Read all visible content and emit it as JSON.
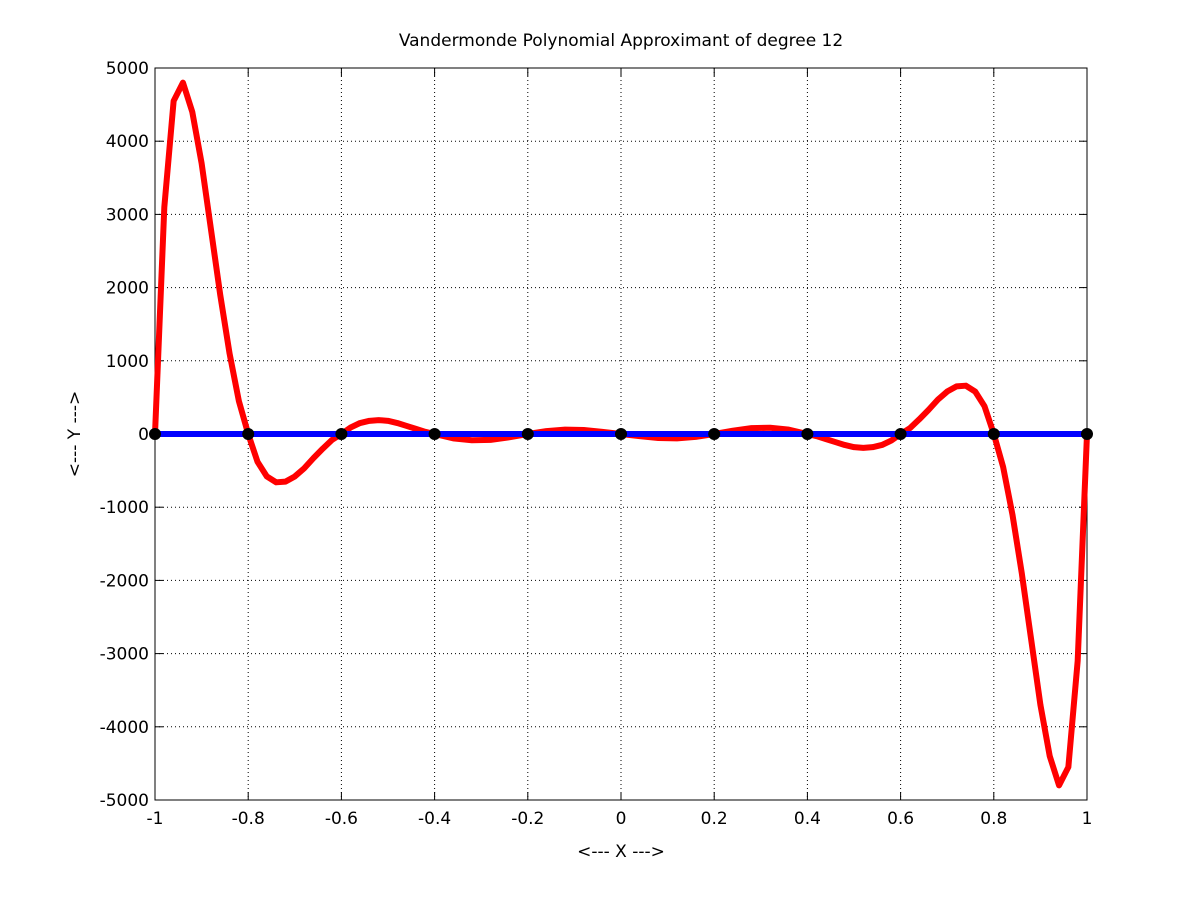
{
  "chart_data": {
    "type": "line",
    "title": "Vandermonde Polynomial Approximant of degree 12",
    "xlabel": "<--- X --->",
    "ylabel": "<--- Y --->",
    "xlim": [
      -1,
      1
    ],
    "ylim": [
      -5000,
      5000
    ],
    "xticks": [
      -1,
      -0.8,
      -0.6,
      -0.4,
      -0.2,
      0,
      0.2,
      0.4,
      0.6,
      0.8,
      1
    ],
    "yticks": [
      -5000,
      -4000,
      -3000,
      -2000,
      -1000,
      0,
      1000,
      2000,
      3000,
      4000,
      5000
    ],
    "grid": true,
    "series": [
      {
        "color": "#ff0000",
        "style": "line",
        "x": [
          -1,
          -0.98,
          -0.96,
          -0.94,
          -0.92,
          -0.9,
          -0.88,
          -0.86,
          -0.84,
          -0.82,
          -0.8,
          -0.78,
          -0.76,
          -0.74,
          -0.72,
          -0.7,
          -0.68,
          -0.66,
          -0.64,
          -0.62,
          -0.6,
          -0.58,
          -0.56,
          -0.54,
          -0.52,
          -0.5,
          -0.48,
          -0.46,
          -0.44,
          -0.42,
          -0.4,
          -0.36,
          -0.32,
          -0.28,
          -0.24,
          -0.2,
          -0.16,
          -0.12,
          -0.08,
          -0.04,
          0,
          0.04,
          0.08,
          0.12,
          0.16,
          0.2,
          0.24,
          0.28,
          0.32,
          0.36,
          0.4,
          0.42,
          0.44,
          0.46,
          0.48,
          0.5,
          0.52,
          0.54,
          0.56,
          0.58,
          0.6,
          0.62,
          0.64,
          0.66,
          0.68,
          0.7,
          0.72,
          0.74,
          0.76,
          0.78,
          0.8,
          0.82,
          0.84,
          0.86,
          0.88,
          0.9,
          0.92,
          0.94,
          0.96,
          0.98,
          1
        ],
        "values": [
          0,
          3100,
          4550,
          4800,
          4400,
          3700,
          2800,
          1900,
          1100,
          450,
          0,
          -380,
          -580,
          -660,
          -650,
          -580,
          -470,
          -330,
          -200,
          -80,
          0,
          90,
          150,
          180,
          190,
          180,
          150,
          110,
          70,
          30,
          0,
          -60,
          -85,
          -80,
          -45,
          0,
          40,
          60,
          55,
          30,
          0,
          -30,
          -55,
          -60,
          -40,
          0,
          45,
          80,
          85,
          60,
          0,
          -30,
          -70,
          -110,
          -150,
          -180,
          -190,
          -180,
          -150,
          -90,
          0,
          80,
          200,
          330,
          470,
          580,
          650,
          660,
          580,
          380,
          0,
          -450,
          -1100,
          -1900,
          -2800,
          -3700,
          -4400,
          -4800,
          -4550,
          -3100,
          0
        ]
      },
      {
        "color": "#0000ff",
        "style": "line",
        "x": [
          -1,
          1
        ],
        "values": [
          0,
          0
        ]
      },
      {
        "color": "#000000",
        "style": "markers",
        "x": [
          -1,
          -0.8,
          -0.6,
          -0.4,
          -0.2,
          0,
          0.2,
          0.4,
          0.6,
          0.8,
          1
        ],
        "values": [
          0,
          0,
          0,
          0,
          0,
          0,
          0,
          0,
          0,
          0,
          0
        ]
      }
    ]
  }
}
